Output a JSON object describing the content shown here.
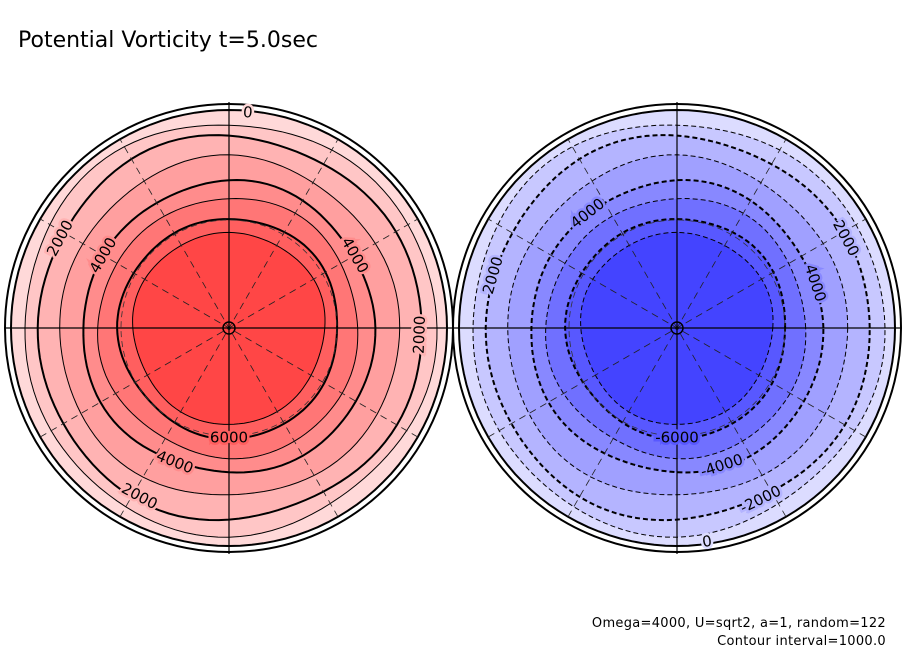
{
  "title": "Potential Vorticity t=5.0sec",
  "footer": {
    "params": "Omega=4000, U=sqrt2, a=1, random=122",
    "interval": "Contour interval=1000.0"
  },
  "chart_data": {
    "type": "polar-contour",
    "title": "Potential Vorticity t=5.0sec",
    "contour_interval": 1000.0,
    "panels": [
      {
        "name": "north",
        "sign": "positive",
        "levels": [
          0,
          1000,
          2000,
          3000,
          4000,
          5000,
          6000,
          7000
        ],
        "shading": [
          "#ffd9d9",
          "#ffc6c6",
          "#ffb3b3",
          "#ff9f9f",
          "#ff8c8c",
          "#ff7676",
          "#ff5f5f",
          "#ff4646"
        ],
        "bold_levels": [
          0,
          2000,
          4000,
          6000
        ],
        "labels": [
          {
            "text": "0",
            "angle_deg": 85,
            "level": 0
          },
          {
            "text": "2000",
            "angle_deg": 152,
            "level": 2000
          },
          {
            "text": "4000",
            "angle_deg": 150,
            "level": 4000
          },
          {
            "text": "4000",
            "angle_deg": 30,
            "level": 4000
          },
          {
            "text": "2000",
            "angle_deg": -2,
            "level": 2000
          },
          {
            "text": "6000",
            "angle_deg": -90,
            "level": 6000
          },
          {
            "text": "4000",
            "angle_deg": -112,
            "level": 4000
          },
          {
            "text": "2000",
            "angle_deg": -118,
            "level": 2000
          }
        ]
      },
      {
        "name": "south",
        "sign": "negative",
        "levels": [
          0,
          -1000,
          -2000,
          -3000,
          -4000,
          -5000,
          -6000,
          -7000
        ],
        "shading": [
          "#dcdcff",
          "#c8c8ff",
          "#b4b4ff",
          "#a0a0ff",
          "#8888ff",
          "#7070ff",
          "#5858ff",
          "#4444ff"
        ],
        "bold_levels": [
          0,
          -2000,
          -4000,
          -6000
        ],
        "labels": [
          {
            "text": "4000",
            "angle_deg": 128,
            "level": -4000
          },
          {
            "text": "2000",
            "angle_deg": 164,
            "level": -2000
          },
          {
            "text": "2000",
            "angle_deg": 28,
            "level": -2000
          },
          {
            "text": "4000",
            "angle_deg": 18,
            "level": -4000
          },
          {
            "text": "-6000",
            "angle_deg": -90,
            "level": -6000
          },
          {
            "text": "-4000",
            "angle_deg": -72,
            "level": -4000
          },
          {
            "text": "-2000",
            "angle_deg": -64,
            "level": -2000
          },
          {
            "text": "0",
            "angle_deg": -82,
            "level": 0
          }
        ]
      }
    ]
  }
}
